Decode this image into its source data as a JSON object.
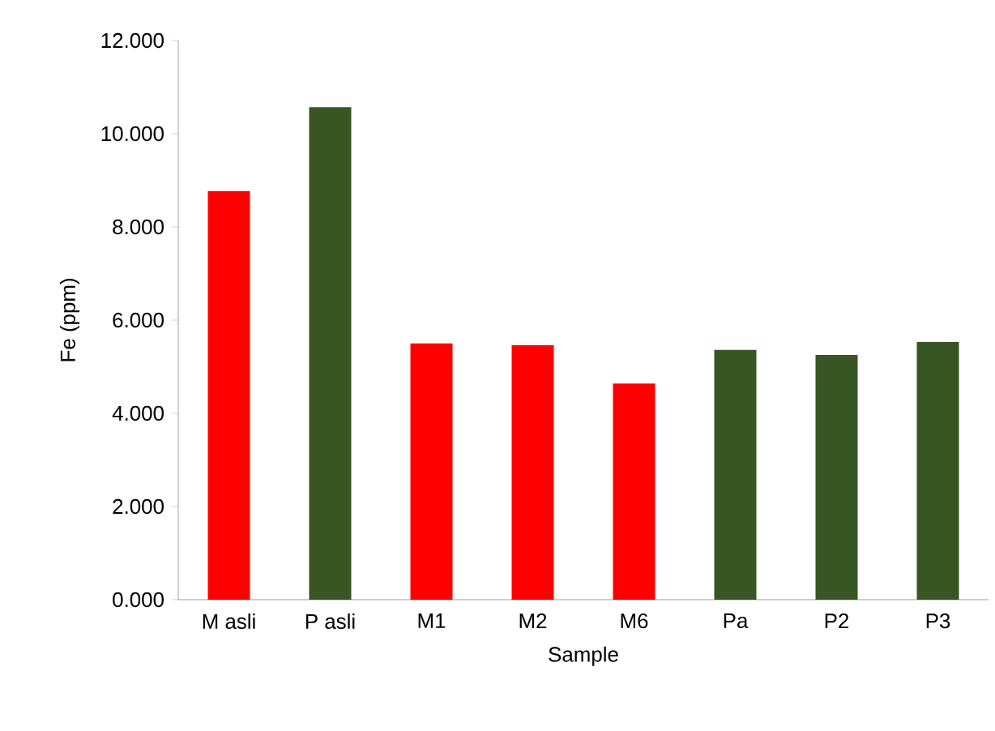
{
  "chart_data": {
    "type": "bar",
    "xlabel": "Sample",
    "ylabel": "Fe (ppm)",
    "categories": [
      "M asli",
      "P asli",
      "M1",
      "M2",
      "M6",
      "Pa",
      "P2",
      "P3"
    ],
    "values": [
      8.77,
      10.57,
      5.5,
      5.46,
      4.64,
      5.36,
      5.25,
      5.53
    ],
    "colors": [
      "#ff0000",
      "#375623",
      "#ff0000",
      "#ff0000",
      "#ff0000",
      "#375623",
      "#375623",
      "#375623"
    ],
    "ylim": [
      0,
      12
    ],
    "yticks": [
      {
        "value": 0,
        "label": "0.000"
      },
      {
        "value": 2,
        "label": "2.000"
      },
      {
        "value": 4,
        "label": "4.000"
      },
      {
        "value": 6,
        "label": "6.000"
      },
      {
        "value": 8,
        "label": "8.000"
      },
      {
        "value": 10,
        "label": "10.000"
      },
      {
        "value": 12,
        "label": "12.000"
      }
    ],
    "grid": false
  }
}
